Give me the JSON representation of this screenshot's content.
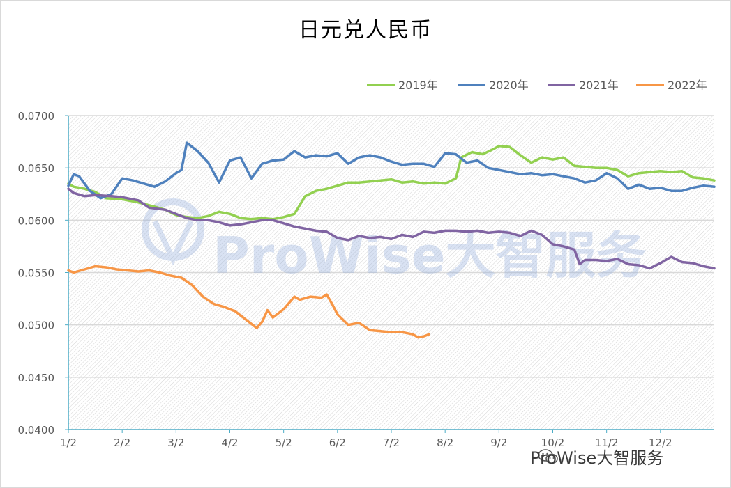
{
  "chart_data": {
    "type": "line",
    "title": "日元兑人民币",
    "xlabel": "",
    "ylabel": "",
    "x_tick_labels": [
      "1/2",
      "2/2",
      "3/2",
      "4/2",
      "5/2",
      "6/2",
      "7/2",
      "8/2",
      "9/2",
      "10/2",
      "11/2",
      "12/2"
    ],
    "y_tick_labels": [
      "0.0400",
      "0.0450",
      "0.0500",
      "0.0550",
      "0.0600",
      "0.0650",
      "0.0700"
    ],
    "ylim": [
      0.04,
      0.07
    ],
    "x_range_months": [
      1,
      13
    ],
    "grid": "horizontal",
    "legend": "top-right",
    "series": [
      {
        "name": "2019年",
        "color": "#92d050",
        "x": [
          1.0,
          1.1,
          1.3,
          1.5,
          1.7,
          2.0,
          2.3,
          2.6,
          2.8,
          3.0,
          3.2,
          3.4,
          3.6,
          3.8,
          4.0,
          4.2,
          4.4,
          4.6,
          4.8,
          5.0,
          5.2,
          5.4,
          5.6,
          5.8,
          6.0,
          6.2,
          6.4,
          6.6,
          6.8,
          7.0,
          7.2,
          7.4,
          7.6,
          7.8,
          8.0,
          8.2,
          8.3,
          8.5,
          8.7,
          8.9,
          9.0,
          9.2,
          9.4,
          9.6,
          9.8,
          10.0,
          10.2,
          10.4,
          10.6,
          10.8,
          11.0,
          11.2,
          11.4,
          11.6,
          11.8,
          12.0,
          12.2,
          12.4,
          12.6,
          12.8,
          13.0
        ],
        "values": [
          0.0635,
          0.0632,
          0.063,
          0.0627,
          0.0621,
          0.062,
          0.0617,
          0.0613,
          0.061,
          0.0605,
          0.0603,
          0.0602,
          0.0604,
          0.0608,
          0.0606,
          0.0602,
          0.0601,
          0.0602,
          0.0601,
          0.0603,
          0.0606,
          0.0623,
          0.0628,
          0.063,
          0.0633,
          0.0636,
          0.0636,
          0.0637,
          0.0638,
          0.0639,
          0.0636,
          0.0637,
          0.0635,
          0.0636,
          0.0635,
          0.064,
          0.066,
          0.0665,
          0.0663,
          0.0668,
          0.0671,
          0.067,
          0.0662,
          0.0655,
          0.066,
          0.0658,
          0.066,
          0.0652,
          0.0651,
          0.065,
          0.065,
          0.0648,
          0.0642,
          0.0645,
          0.0646,
          0.0647,
          0.0646,
          0.0647,
          0.0641,
          0.064,
          0.0638
        ]
      },
      {
        "name": "2020年",
        "color": "#4f81bd",
        "x": [
          1.0,
          1.1,
          1.2,
          1.4,
          1.6,
          1.8,
          2.0,
          2.2,
          2.4,
          2.6,
          2.8,
          3.0,
          3.1,
          3.2,
          3.4,
          3.6,
          3.8,
          4.0,
          4.2,
          4.4,
          4.6,
          4.8,
          5.0,
          5.2,
          5.4,
          5.6,
          5.8,
          6.0,
          6.2,
          6.4,
          6.6,
          6.8,
          7.0,
          7.2,
          7.4,
          7.6,
          7.8,
          8.0,
          8.2,
          8.4,
          8.6,
          8.8,
          9.0,
          9.2,
          9.4,
          9.6,
          9.8,
          10.0,
          10.2,
          10.4,
          10.6,
          10.8,
          11.0,
          11.2,
          11.4,
          11.6,
          11.8,
          12.0,
          12.2,
          12.4,
          12.6,
          12.8,
          13.0
        ],
        "values": [
          0.0633,
          0.0644,
          0.0642,
          0.0628,
          0.0621,
          0.0625,
          0.064,
          0.0638,
          0.0635,
          0.0632,
          0.0637,
          0.0645,
          0.0648,
          0.0674,
          0.0666,
          0.0655,
          0.0636,
          0.0657,
          0.066,
          0.064,
          0.0654,
          0.0657,
          0.0658,
          0.0666,
          0.066,
          0.0662,
          0.0661,
          0.0664,
          0.0654,
          0.066,
          0.0662,
          0.066,
          0.0656,
          0.0653,
          0.0654,
          0.0654,
          0.0651,
          0.0664,
          0.0663,
          0.0655,
          0.0657,
          0.065,
          0.0648,
          0.0646,
          0.0644,
          0.0645,
          0.0643,
          0.0644,
          0.0642,
          0.064,
          0.0636,
          0.0638,
          0.0645,
          0.064,
          0.063,
          0.0634,
          0.063,
          0.0631,
          0.0628,
          0.0628,
          0.0631,
          0.0633,
          0.0632
        ]
      },
      {
        "name": "2021年",
        "color": "#8064a2",
        "x": [
          1.0,
          1.1,
          1.3,
          1.5,
          1.8,
          2.0,
          2.3,
          2.5,
          2.8,
          3.0,
          3.2,
          3.4,
          3.6,
          3.8,
          4.0,
          4.2,
          4.4,
          4.6,
          4.8,
          5.0,
          5.2,
          5.4,
          5.6,
          5.8,
          6.0,
          6.2,
          6.4,
          6.6,
          6.8,
          7.0,
          7.2,
          7.4,
          7.6,
          7.8,
          8.0,
          8.2,
          8.4,
          8.6,
          8.8,
          9.0,
          9.2,
          9.4,
          9.6,
          9.8,
          10.0,
          10.2,
          10.4,
          10.5,
          10.6,
          10.8,
          11.0,
          11.2,
          11.4,
          11.6,
          11.8,
          12.0,
          12.2,
          12.4,
          12.6,
          12.8,
          13.0
        ],
        "values": [
          0.063,
          0.0626,
          0.0623,
          0.0624,
          0.0623,
          0.0622,
          0.0619,
          0.0612,
          0.061,
          0.0606,
          0.0602,
          0.06,
          0.06,
          0.0598,
          0.0595,
          0.0596,
          0.0598,
          0.06,
          0.06,
          0.0597,
          0.0594,
          0.0592,
          0.059,
          0.0589,
          0.0583,
          0.0581,
          0.0585,
          0.0583,
          0.0584,
          0.0582,
          0.0586,
          0.0584,
          0.0589,
          0.0588,
          0.059,
          0.059,
          0.0589,
          0.059,
          0.0588,
          0.0589,
          0.0588,
          0.0585,
          0.059,
          0.0586,
          0.0577,
          0.0575,
          0.0572,
          0.0558,
          0.0562,
          0.0562,
          0.0561,
          0.0563,
          0.0558,
          0.0557,
          0.0554,
          0.0559,
          0.0565,
          0.056,
          0.0559,
          0.0556,
          0.0554
        ]
      },
      {
        "name": "2022年",
        "color": "#f79646",
        "x": [
          1.0,
          1.1,
          1.3,
          1.5,
          1.7,
          1.9,
          2.1,
          2.3,
          2.5,
          2.7,
          2.9,
          3.1,
          3.3,
          3.5,
          3.7,
          3.9,
          4.1,
          4.3,
          4.5,
          4.6,
          4.7,
          4.8,
          4.9,
          5.0,
          5.2,
          5.3,
          5.5,
          5.7,
          5.8,
          5.9,
          6.0,
          6.2,
          6.4,
          6.6,
          6.8,
          7.0,
          7.2,
          7.4,
          7.5,
          7.6,
          7.7
        ],
        "values": [
          0.0552,
          0.055,
          0.0553,
          0.0556,
          0.0555,
          0.0553,
          0.0552,
          0.0551,
          0.0552,
          0.055,
          0.0547,
          0.0545,
          0.0538,
          0.0527,
          0.052,
          0.0517,
          0.0513,
          0.0505,
          0.0497,
          0.0503,
          0.0514,
          0.0507,
          0.0511,
          0.0515,
          0.0527,
          0.0524,
          0.0527,
          0.0526,
          0.0529,
          0.052,
          0.051,
          0.05,
          0.0502,
          0.0495,
          0.0494,
          0.0493,
          0.0493,
          0.0491,
          0.0488,
          0.0489,
          0.0491
        ]
      }
    ]
  },
  "watermark": {
    "brand": "ProWise大智服务",
    "footer_text": "ProWise大智服务"
  }
}
